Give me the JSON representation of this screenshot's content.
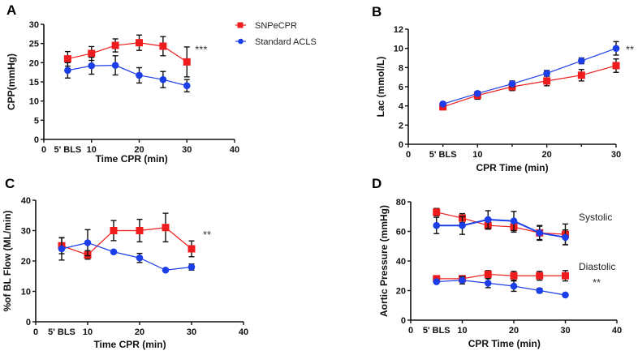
{
  "legend": {
    "series": [
      {
        "name": "SNPeCPR",
        "color": "#ee1c1c",
        "marker": "square"
      },
      {
        "name": "Standard ACLS",
        "color": "#1c3ee8",
        "marker": "circle"
      }
    ]
  },
  "chart_data": [
    {
      "panel": "A",
      "type": "line",
      "xlabel": "Time CPR (min)",
      "ylabel": "CPP(mmHg)",
      "xlim": [
        0,
        40
      ],
      "ylim": [
        0,
        30
      ],
      "xticks": [
        0,
        10,
        20,
        30,
        40
      ],
      "xtick_labels": [
        "0",
        "10",
        "20",
        "30",
        "40"
      ],
      "extra_xlabel": "5' BLS",
      "yticks": [
        0,
        5,
        10,
        15,
        20,
        25,
        30
      ],
      "x": [
        5,
        10,
        15,
        20,
        25,
        30
      ],
      "series": [
        {
          "name": "SNPeCPR",
          "values": [
            21,
            22.4,
            24.5,
            25.2,
            24.3,
            20.2
          ],
          "err": [
            1.9,
            1.8,
            1.7,
            2.0,
            2.5,
            3.9
          ]
        },
        {
          "name": "Standard ACLS",
          "values": [
            18,
            19.2,
            19.3,
            16.7,
            15.6,
            14
          ],
          "err": [
            2.0,
            2.2,
            2.5,
            2.0,
            2.1,
            1.6
          ]
        }
      ],
      "significance": "***",
      "legend": "top-right"
    },
    {
      "panel": "B",
      "type": "line",
      "xlabel": "CPR Time (min)",
      "ylabel": "Lac (mmol/L)",
      "xlim": [
        0,
        30
      ],
      "ylim": [
        0,
        12
      ],
      "xticks": [
        0,
        10,
        20,
        30
      ],
      "xtick_labels": [
        "0",
        "10",
        "20",
        "30"
      ],
      "extra_xlabel": "5' BLS",
      "yticks": [
        0,
        2,
        4,
        6,
        8,
        10,
        12
      ],
      "x": [
        5,
        10,
        15,
        20,
        25,
        30
      ],
      "series": [
        {
          "name": "SNPeCPR",
          "values": [
            3.9,
            5.1,
            6.0,
            6.6,
            7.2,
            8.2
          ],
          "err": [
            0.2,
            0.4,
            0.4,
            0.5,
            0.6,
            0.7
          ]
        },
        {
          "name": "Standard ACLS",
          "values": [
            4.2,
            5.3,
            6.3,
            7.4,
            8.7,
            10.0
          ],
          "err": [
            0.2,
            0.2,
            0.3,
            0.3,
            0.3,
            0.7
          ]
        }
      ],
      "significance": "**"
    },
    {
      "panel": "C",
      "type": "line",
      "xlabel": "Time CPR (min)",
      "ylabel": "%of BL Flow (ML/min)",
      "xlim": [
        0,
        40
      ],
      "ylim": [
        0,
        40
      ],
      "xticks": [
        0,
        10,
        20,
        30,
        40
      ],
      "xtick_labels": [
        "0",
        "10",
        "20",
        "30",
        "40"
      ],
      "extra_xlabel": "5' BLS",
      "yticks": [
        0,
        10,
        20,
        30,
        40
      ],
      "x": [
        5,
        10,
        15,
        20,
        25,
        30
      ],
      "series": [
        {
          "name": "SNPeCPR",
          "values": [
            25,
            22,
            30,
            30,
            31,
            24
          ],
          "err": [
            2.6,
            1.4,
            3.3,
            3.7,
            4.7,
            2.6
          ]
        },
        {
          "name": "Standard ACLS",
          "values": [
            24,
            26,
            23,
            21,
            17,
            18
          ],
          "err": [
            3.7,
            4.3,
            0,
            1.5,
            0,
            1.0
          ]
        }
      ],
      "significance": "**"
    },
    {
      "panel": "D",
      "type": "line",
      "xlabel": "CPR Time (min)",
      "ylabel": "Aortic Pressure (mmHg)",
      "xlim": [
        0,
        40
      ],
      "ylim": [
        0,
        80
      ],
      "xticks": [
        0,
        10,
        20,
        30,
        40
      ],
      "xtick_labels": [
        "0",
        "10",
        "20",
        "30",
        "40"
      ],
      "extra_xlabel": "5' BLS",
      "yticks": [
        0,
        20,
        40,
        60,
        80
      ],
      "x": [
        5,
        10,
        15,
        20,
        25,
        30
      ],
      "series": [
        {
          "name": "SNPeCPR Systolic",
          "values": [
            73,
            69,
            64,
            63,
            59,
            58
          ],
          "err": [
            2.5,
            3.0,
            2.5,
            3.5,
            4.5,
            7.0
          ]
        },
        {
          "name": "Standard ACLS Systolic",
          "values": [
            64,
            64,
            68,
            67,
            59,
            56
          ],
          "err": [
            5.5,
            6.0,
            6.0,
            6.5,
            5.0,
            5.0
          ]
        },
        {
          "name": "SNPeCPR Diastolic",
          "values": [
            28,
            28,
            31,
            30,
            30,
            30
          ],
          "err": [
            2.0,
            2.0,
            2.5,
            3.0,
            3.0,
            3.5
          ]
        },
        {
          "name": "Standard ACLS Diastolic",
          "values": [
            26,
            27,
            25,
            23,
            20,
            17
          ],
          "err": [
            1.0,
            2.5,
            3.0,
            3.5,
            1.5,
            0.5
          ]
        }
      ],
      "annotations": [
        "Systolic",
        "Diastolic"
      ],
      "significance": "**"
    }
  ]
}
